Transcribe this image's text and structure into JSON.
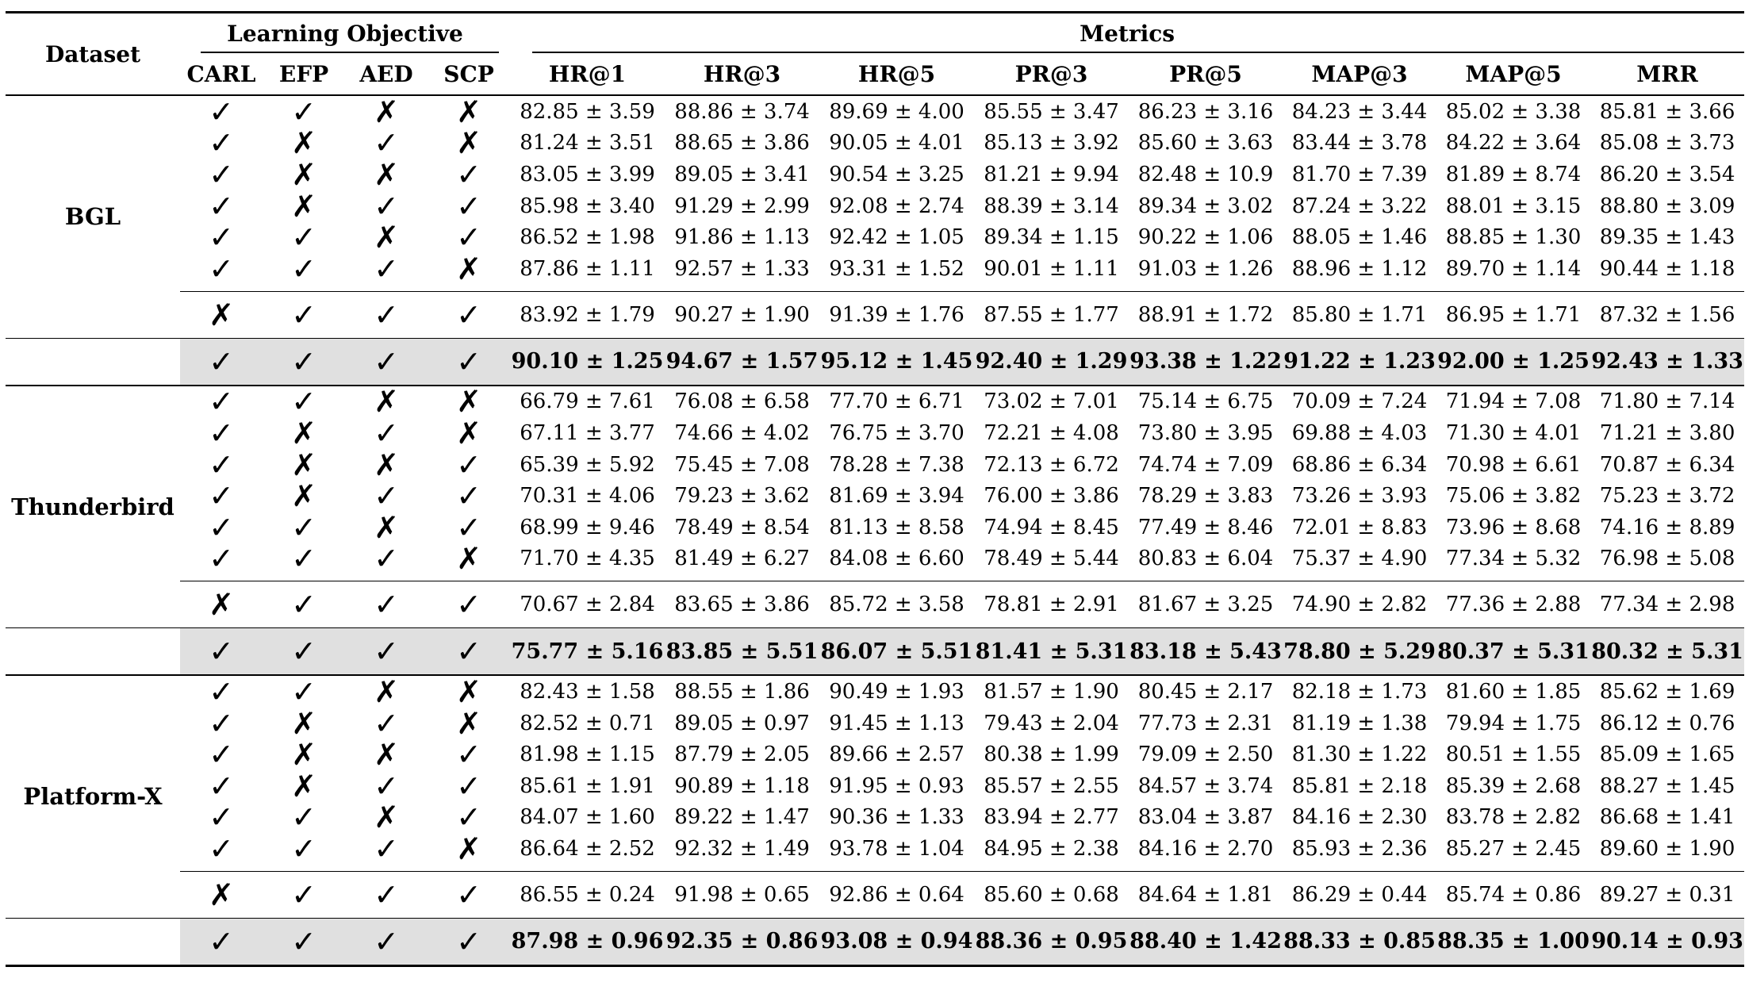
{
  "header": {
    "dataset": "Dataset",
    "learning_objective": "Learning Objective",
    "metrics": "Metrics",
    "objectives": [
      "CARL",
      "EFP",
      "AED",
      "SCP"
    ],
    "metric_names": [
      "HR@1",
      "HR@3",
      "HR@5",
      "PR@3",
      "PR@5",
      "MAP@3",
      "MAP@5",
      "MRR"
    ]
  },
  "symbols": {
    "check": "✓",
    "cross": "✗"
  },
  "datasets": [
    {
      "name": "BGL",
      "rows": [
        {
          "obj": [
            "✓",
            "✓",
            "✗",
            "✗"
          ],
          "vals": [
            "82.85 ± 3.59",
            "88.86 ± 3.74",
            "89.69 ± 4.00",
            "85.55 ± 3.47",
            "86.23 ± 3.16",
            "84.23 ± 3.44",
            "85.02 ± 3.38",
            "85.81 ± 3.66"
          ]
        },
        {
          "obj": [
            "✓",
            "✗",
            "✓",
            "✗"
          ],
          "vals": [
            "81.24 ± 3.51",
            "88.65 ± 3.86",
            "90.05 ± 4.01",
            "85.13 ± 3.92",
            "85.60 ± 3.63",
            "83.44 ± 3.78",
            "84.22 ± 3.64",
            "85.08 ± 3.73"
          ]
        },
        {
          "obj": [
            "✓",
            "✗",
            "✗",
            "✓"
          ],
          "vals": [
            "83.05 ± 3.99",
            "89.05 ± 3.41",
            "90.54 ± 3.25",
            "81.21 ± 9.94",
            "82.48 ± 10.9",
            "81.70 ± 7.39",
            "81.89 ± 8.74",
            "86.20 ± 3.54"
          ]
        },
        {
          "obj": [
            "✓",
            "✗",
            "✓",
            "✓"
          ],
          "vals": [
            "85.98 ± 3.40",
            "91.29 ± 2.99",
            "92.08 ± 2.74",
            "88.39 ± 3.14",
            "89.34 ± 3.02",
            "87.24 ± 3.22",
            "88.01 ± 3.15",
            "88.80 ± 3.09"
          ]
        },
        {
          "obj": [
            "✓",
            "✓",
            "✗",
            "✓"
          ],
          "vals": [
            "86.52 ± 1.98",
            "91.86 ± 1.13",
            "92.42 ± 1.05",
            "89.34 ± 1.15",
            "90.22 ± 1.06",
            "88.05 ± 1.46",
            "88.85 ± 1.30",
            "89.35 ± 1.43"
          ]
        },
        {
          "obj": [
            "✓",
            "✓",
            "✓",
            "✗"
          ],
          "vals": [
            "87.86 ± 1.11",
            "92.57 ± 1.33",
            "93.31 ± 1.52",
            "90.01 ± 1.11",
            "91.03 ± 1.26",
            "88.96 ± 1.12",
            "89.70 ± 1.14",
            "90.44 ± 1.18"
          ]
        }
      ],
      "no_carl": {
        "obj": [
          "✗",
          "✓",
          "✓",
          "✓"
        ],
        "vals": [
          "83.92 ± 1.79",
          "90.27 ± 1.90",
          "91.39 ± 1.76",
          "87.55 ± 1.77",
          "88.91 ± 1.72",
          "85.80 ± 1.71",
          "86.95 ± 1.71",
          "87.32 ± 1.56"
        ]
      },
      "full": {
        "obj": [
          "✓",
          "✓",
          "✓",
          "✓"
        ],
        "vals": [
          "90.10 ± 1.25",
          "94.67 ± 1.57",
          "95.12 ± 1.45",
          "92.40 ± 1.29",
          "93.38 ± 1.22",
          "91.22 ± 1.23",
          "92.00 ± 1.25",
          "92.43 ± 1.33"
        ]
      }
    },
    {
      "name": "Thunderbird",
      "rows": [
        {
          "obj": [
            "✓",
            "✓",
            "✗",
            "✗"
          ],
          "vals": [
            "66.79 ± 7.61",
            "76.08 ± 6.58",
            "77.70 ± 6.71",
            "73.02 ± 7.01",
            "75.14 ± 6.75",
            "70.09 ± 7.24",
            "71.94 ± 7.08",
            "71.80 ± 7.14"
          ]
        },
        {
          "obj": [
            "✓",
            "✗",
            "✓",
            "✗"
          ],
          "vals": [
            "67.11 ± 3.77",
            "74.66 ± 4.02",
            "76.75 ± 3.70",
            "72.21 ± 4.08",
            "73.80 ± 3.95",
            "69.88 ± 4.03",
            "71.30 ± 4.01",
            "71.21 ± 3.80"
          ]
        },
        {
          "obj": [
            "✓",
            "✗",
            "✗",
            "✓"
          ],
          "vals": [
            "65.39 ± 5.92",
            "75.45 ± 7.08",
            "78.28 ± 7.38",
            "72.13 ± 6.72",
            "74.74 ± 7.09",
            "68.86 ± 6.34",
            "70.98 ± 6.61",
            "70.87 ± 6.34"
          ]
        },
        {
          "obj": [
            "✓",
            "✗",
            "✓",
            "✓"
          ],
          "vals": [
            "70.31 ± 4.06",
            "79.23 ± 3.62",
            "81.69 ± 3.94",
            "76.00 ± 3.86",
            "78.29 ± 3.83",
            "73.26 ± 3.93",
            "75.06 ± 3.82",
            "75.23 ± 3.72"
          ]
        },
        {
          "obj": [
            "✓",
            "✓",
            "✗",
            "✓"
          ],
          "vals": [
            "68.99 ± 9.46",
            "78.49 ± 8.54",
            "81.13 ± 8.58",
            "74.94 ± 8.45",
            "77.49 ± 8.46",
            "72.01 ± 8.83",
            "73.96 ± 8.68",
            "74.16 ± 8.89"
          ]
        },
        {
          "obj": [
            "✓",
            "✓",
            "✓",
            "✗"
          ],
          "vals": [
            "71.70 ± 4.35",
            "81.49 ± 6.27",
            "84.08 ± 6.60",
            "78.49 ± 5.44",
            "80.83 ± 6.04",
            "75.37 ± 4.90",
            "77.34 ± 5.32",
            "76.98 ± 5.08"
          ]
        }
      ],
      "no_carl": {
        "obj": [
          "✗",
          "✓",
          "✓",
          "✓"
        ],
        "vals": [
          "70.67 ± 2.84",
          "83.65 ± 3.86",
          "85.72 ± 3.58",
          "78.81 ± 2.91",
          "81.67 ± 3.25",
          "74.90 ± 2.82",
          "77.36 ± 2.88",
          "77.34 ± 2.98"
        ]
      },
      "full": {
        "obj": [
          "✓",
          "✓",
          "✓",
          "✓"
        ],
        "vals": [
          "75.77 ± 5.16",
          "83.85 ± 5.51",
          "86.07 ± 5.51",
          "81.41 ± 5.31",
          "83.18 ± 5.43",
          "78.80 ± 5.29",
          "80.37 ± 5.31",
          "80.32 ± 5.31"
        ]
      }
    },
    {
      "name": "Platform-X",
      "rows": [
        {
          "obj": [
            "✓",
            "✓",
            "✗",
            "✗"
          ],
          "vals": [
            "82.43 ± 1.58",
            "88.55 ± 1.86",
            "90.49 ± 1.93",
            "81.57 ± 1.90",
            "80.45 ± 2.17",
            "82.18 ± 1.73",
            "81.60 ± 1.85",
            "85.62 ± 1.69"
          ]
        },
        {
          "obj": [
            "✓",
            "✗",
            "✓",
            "✗"
          ],
          "vals": [
            "82.52 ± 0.71",
            "89.05 ± 0.97",
            "91.45 ± 1.13",
            "79.43 ± 2.04",
            "77.73 ± 2.31",
            "81.19 ± 1.38",
            "79.94 ± 1.75",
            "86.12 ± 0.76"
          ]
        },
        {
          "obj": [
            "✓",
            "✗",
            "✗",
            "✓"
          ],
          "vals": [
            "81.98 ± 1.15",
            "87.79 ± 2.05",
            "89.66 ± 2.57",
            "80.38 ± 1.99",
            "79.09 ± 2.50",
            "81.30 ± 1.22",
            "80.51 ± 1.55",
            "85.09 ± 1.65"
          ]
        },
        {
          "obj": [
            "✓",
            "✗",
            "✓",
            "✓"
          ],
          "vals": [
            "85.61 ± 1.91",
            "90.89 ± 1.18",
            "91.95 ± 0.93",
            "85.57 ± 2.55",
            "84.57 ± 3.74",
            "85.81 ± 2.18",
            "85.39 ± 2.68",
            "88.27 ± 1.45"
          ]
        },
        {
          "obj": [
            "✓",
            "✓",
            "✗",
            "✓"
          ],
          "vals": [
            "84.07 ± 1.60",
            "89.22 ± 1.47",
            "90.36 ± 1.33",
            "83.94 ± 2.77",
            "83.04 ± 3.87",
            "84.16 ± 2.30",
            "83.78 ± 2.82",
            "86.68 ± 1.41"
          ]
        },
        {
          "obj": [
            "✓",
            "✓",
            "✓",
            "✗"
          ],
          "vals": [
            "86.64 ± 2.52",
            "92.32 ± 1.49",
            "93.78 ± 1.04",
            "84.95 ± 2.38",
            "84.16 ± 2.70",
            "85.93 ± 2.36",
            "85.27 ± 2.45",
            "89.60 ± 1.90"
          ]
        }
      ],
      "no_carl": {
        "obj": [
          "✗",
          "✓",
          "✓",
          "✓"
        ],
        "vals": [
          "86.55 ± 0.24",
          "91.98 ± 0.65",
          "92.86 ± 0.64",
          "85.60 ± 0.68",
          "84.64 ± 1.81",
          "86.29 ± 0.44",
          "85.74 ± 0.86",
          "89.27 ± 0.31"
        ]
      },
      "full": {
        "obj": [
          "✓",
          "✓",
          "✓",
          "✓"
        ],
        "vals": [
          "87.98 ± 0.96",
          "92.35 ± 0.86",
          "93.08 ± 0.94",
          "88.36 ± 0.95",
          "88.40 ± 1.42",
          "88.33 ± 0.85",
          "88.35 ± 1.00",
          "90.14 ± 0.93"
        ]
      }
    }
  ]
}
